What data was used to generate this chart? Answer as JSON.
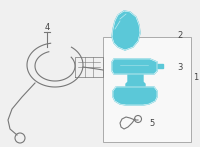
{
  "bg_color": "#f0f0f0",
  "part_color": "#5bc8d8",
  "line_color": "#999999",
  "dark_line": "#777777",
  "label_color": "#444444",
  "labels": [
    "1",
    "2",
    "3",
    "4",
    "5"
  ],
  "fig_width": 2.0,
  "fig_height": 1.47,
  "dpi": 100
}
